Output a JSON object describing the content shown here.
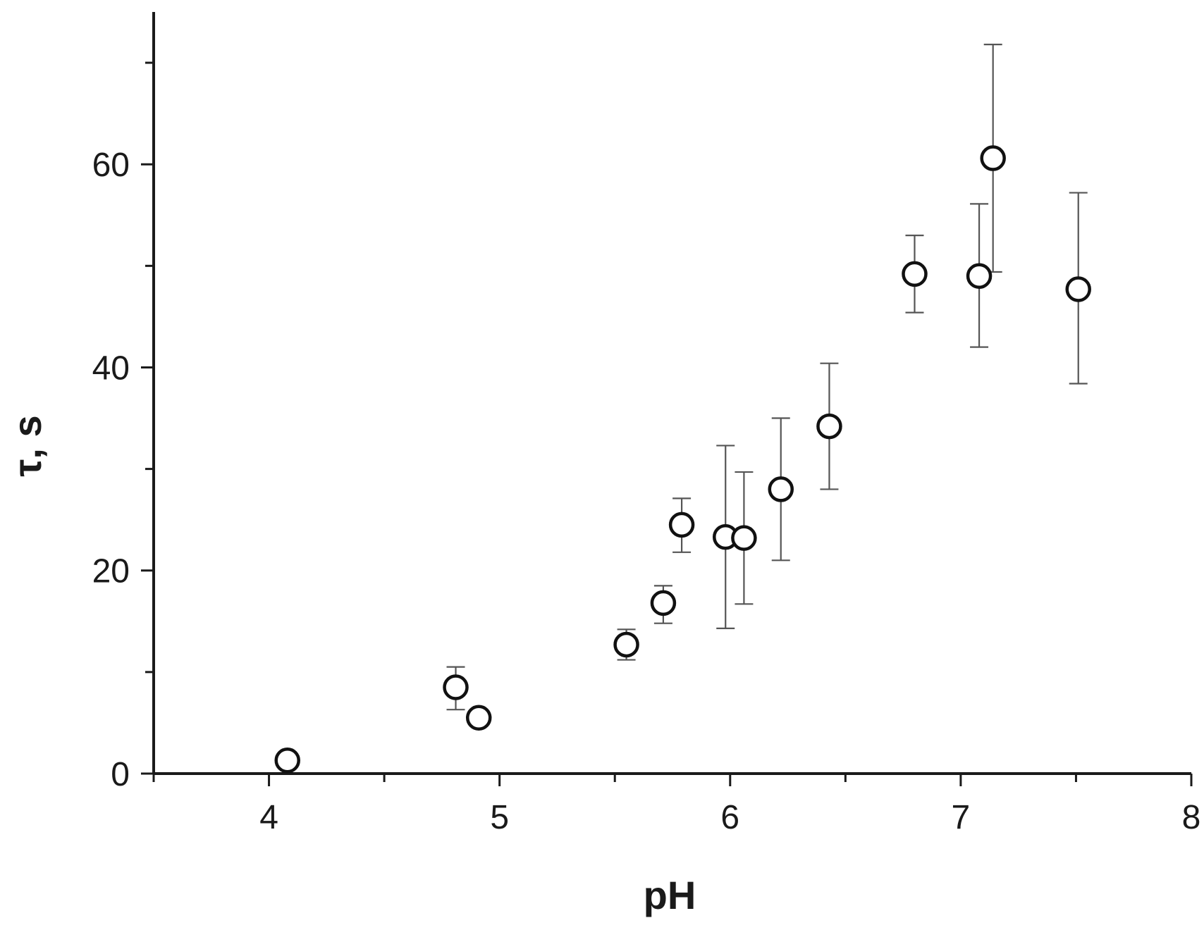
{
  "chart_data": {
    "type": "scatter",
    "title": "",
    "xlabel": "pH",
    "ylabel": "τ, s",
    "xlim": [
      3.5,
      8
    ],
    "ylim": [
      0,
      75
    ],
    "x_ticks": [
      4,
      5,
      6,
      7,
      8
    ],
    "x_tick_labels": [
      "4",
      "5",
      "6",
      "7",
      "8"
    ],
    "y_ticks": [
      0,
      20,
      40,
      60
    ],
    "y_tick_labels": [
      "0",
      "20",
      "40",
      "60"
    ],
    "grid": false,
    "legend": "none",
    "marker": "open-circle",
    "series": [
      {
        "points": [
          {
            "x": 4.08,
            "y": 1.3,
            "err_low": 0.5,
            "err_high": 0.5
          },
          {
            "x": 4.81,
            "y": 8.5,
            "err_low": 2.2,
            "err_high": 2.0
          },
          {
            "x": 4.91,
            "y": 5.5,
            "err_low": 0.4,
            "err_high": 0.4
          },
          {
            "x": 5.55,
            "y": 12.7,
            "err_low": 1.5,
            "err_high": 1.5
          },
          {
            "x": 5.71,
            "y": 16.8,
            "err_low": 2.0,
            "err_high": 1.7
          },
          {
            "x": 5.79,
            "y": 24.5,
            "err_low": 2.7,
            "err_high": 2.6
          },
          {
            "x": 5.98,
            "y": 23.3,
            "err_low": 9.0,
            "err_high": 9.0
          },
          {
            "x": 6.06,
            "y": 23.2,
            "err_low": 6.5,
            "err_high": 6.5
          },
          {
            "x": 6.22,
            "y": 28.0,
            "err_low": 7.0,
            "err_high": 7.0
          },
          {
            "x": 6.43,
            "y": 34.2,
            "err_low": 6.2,
            "err_high": 6.2
          },
          {
            "x": 6.8,
            "y": 49.2,
            "err_low": 3.8,
            "err_high": 3.8
          },
          {
            "x": 7.08,
            "y": 49.0,
            "err_low": 7.0,
            "err_high": 7.1
          },
          {
            "x": 7.14,
            "y": 60.6,
            "err_low": 11.2,
            "err_high": 11.2
          },
          {
            "x": 7.51,
            "y": 47.7,
            "err_low": 9.3,
            "err_high": 9.5
          }
        ]
      }
    ]
  },
  "colors": {
    "axis": "#1a1a1a",
    "marker_stroke": "#111111",
    "marker_fill": "#ffffff",
    "error_bar": "#555555"
  }
}
